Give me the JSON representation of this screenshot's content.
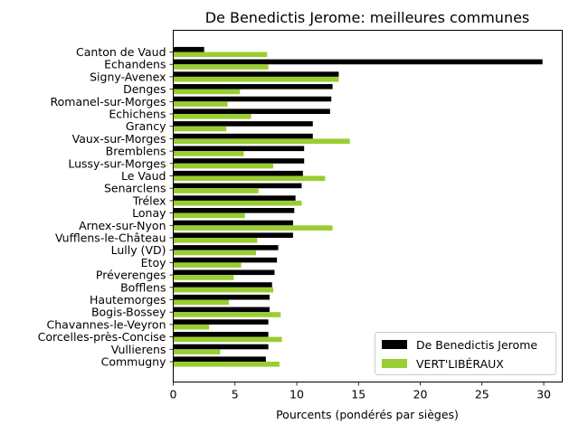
{
  "chart_data": {
    "type": "bar",
    "orientation": "horizontal",
    "title": "De Benedictis Jerome: meilleures communes",
    "xlabel": "Pourcents (pondérés par sièges)",
    "ylabel": "",
    "xlim": [
      0,
      31.5
    ],
    "xticks": [
      0,
      5,
      10,
      15,
      20,
      25,
      30
    ],
    "grid": false,
    "legend_position": "lower-right",
    "categories": [
      "Canton de Vaud",
      "Echandens",
      "Signy-Avenex",
      "Denges",
      "Romanel-sur-Morges",
      "Echichens",
      "Grancy",
      "Vaux-sur-Morges",
      "Bremblens",
      "Lussy-sur-Morges",
      "Le Vaud",
      "Senarclens",
      "Trélex",
      "Lonay",
      "Arnex-sur-Nyon",
      "Vufflens-le-Château",
      "Lully (VD)",
      "Etoy",
      "Préverenges",
      "Bofflens",
      "Hautemorges",
      "Bogis-Bossey",
      "Chavannes-le-Veyron",
      "Corcelles-près-Concise",
      "Vullierens",
      "Commugny"
    ],
    "series": [
      {
        "name": "De Benedictis Jerome",
        "color": "#000000",
        "values": [
          2.5,
          29.9,
          13.4,
          12.9,
          12.8,
          12.7,
          11.3,
          11.3,
          10.6,
          10.6,
          10.5,
          10.4,
          9.9,
          9.8,
          9.7,
          9.7,
          8.5,
          8.4,
          8.2,
          8.0,
          7.8,
          7.8,
          7.7,
          7.7,
          7.7,
          7.5
        ],
        "offset": "top"
      },
      {
        "name": "VERT'LIBÉRAUX",
        "color": "#9acd32",
        "values": [
          7.6,
          7.7,
          13.4,
          5.4,
          4.4,
          6.3,
          4.3,
          14.3,
          5.7,
          8.1,
          12.3,
          6.9,
          10.4,
          5.8,
          12.9,
          6.8,
          6.7,
          5.5,
          4.9,
          8.1,
          4.5,
          8.7,
          2.9,
          8.8,
          3.8,
          8.6
        ],
        "offset": "bottom"
      }
    ]
  }
}
